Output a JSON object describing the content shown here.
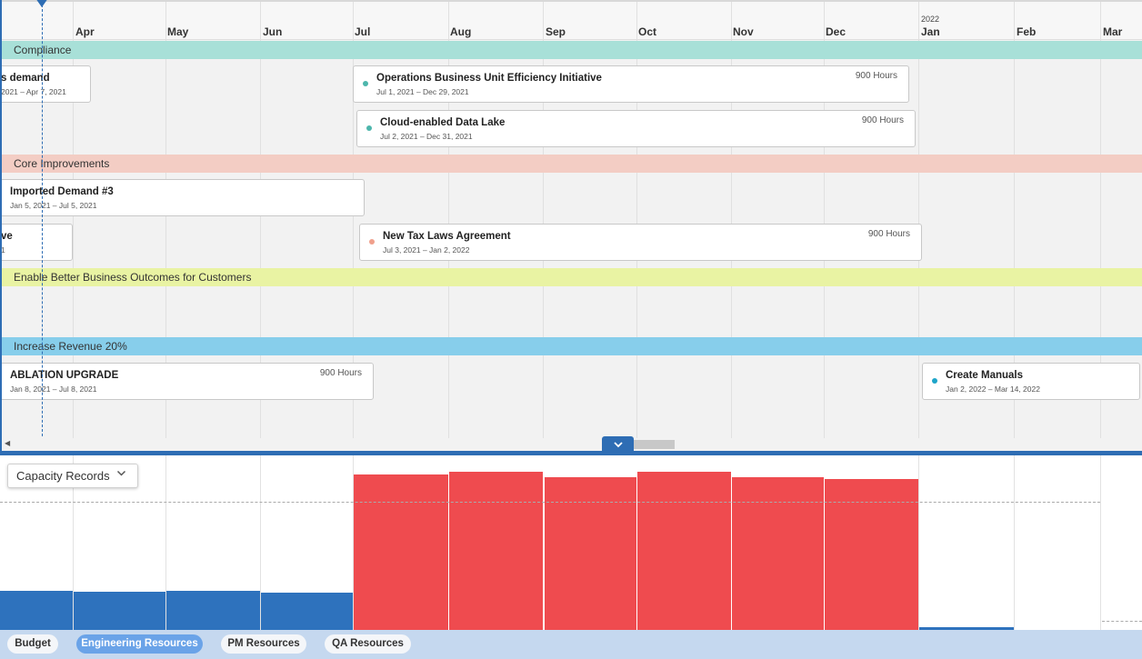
{
  "timeline": {
    "year_label": "2022",
    "months": [
      "Apr",
      "May",
      "Jun",
      "Jul",
      "Aug",
      "Sep",
      "Oct",
      "Nov",
      "Dec",
      "Jan",
      "Feb",
      "Mar"
    ],
    "groups": {
      "compliance": "Compliance",
      "core": "Core Improvements",
      "better": "Enable Better Business Outcomes for Customers",
      "revenue": "Increase Revenue 20%"
    },
    "cards": {
      "c1": {
        "title": "s demand",
        "dates": "2021 – Apr 7, 2021"
      },
      "c2": {
        "title": "Operations Business Unit Efficiency Initiative",
        "dates": "Jul 1, 2021 – Dec 29, 2021",
        "hours": "900 Hours"
      },
      "c3": {
        "title": "Cloud-enabled Data Lake",
        "dates": "Jul 2, 2021 – Dec 31, 2021",
        "hours": "900 Hours"
      },
      "c4": {
        "title": "Imported Demand #3",
        "dates": "Jan 5, 2021 – Jul 5, 2021"
      },
      "c5": {
        "title": "ve",
        "dates": "1"
      },
      "c6": {
        "title": "New Tax Laws Agreement",
        "dates": "Jul 3, 2021 – Jan 2, 2022",
        "hours": "900 Hours"
      },
      "c7": {
        "title": "ABLATION UPGRADE",
        "dates": "Jan 8, 2021 – Jul 8, 2021",
        "hours": "900 Hours"
      },
      "c8": {
        "title": "Create Manuals",
        "dates": "Jan 2, 2022 – Mar 14, 2022"
      }
    }
  },
  "capacity": {
    "dropdown_label": "Capacity Records"
  },
  "tabs": [
    "Budget",
    "Engineering Resources",
    "PM Resources",
    "QA Resources"
  ],
  "colors": {
    "compliance": "#a8e0d8",
    "core": "#f3cdc4",
    "better": "#e9f3a3",
    "revenue": "#87ceeb",
    "over": "#ef4b4f",
    "under": "#2e72bd",
    "accent": "#2e6db4"
  }
}
